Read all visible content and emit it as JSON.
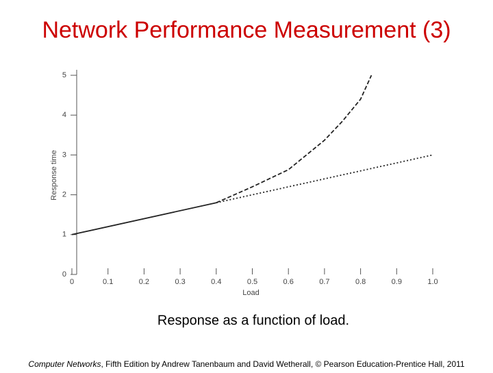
{
  "slide_title": "Network Performance Measurement (3)",
  "caption": "Response as a function of load.",
  "footer": {
    "book": "Computer Networks",
    "rest": ", Fifth Edition by Andrew Tanenbaum and David Wetherall, © Pearson Education-Prentice Hall, 2011"
  },
  "chart_data": {
    "type": "line",
    "xlabel": "Load",
    "ylabel": "Response time",
    "xlim": [
      0,
      1
    ],
    "ylim": [
      0,
      5
    ],
    "xticks": [
      0,
      0.1,
      0.2,
      0.3,
      0.4,
      0.5,
      0.6,
      0.7,
      0.8,
      0.9,
      {
        "value": 1,
        "label": "1.0"
      }
    ],
    "yticks": [
      0,
      1,
      2,
      3,
      4,
      5
    ],
    "series": [
      {
        "color": "#222222",
        "dash": "solid",
        "x": [
          0,
          0.4
        ],
        "values": [
          1.0,
          1.8
        ]
      },
      {
        "color": "#222222",
        "dash": "dotted",
        "x": [
          0.4,
          1.0
        ],
        "values": [
          1.8,
          3.0
        ]
      },
      {
        "color": "#222222",
        "dash": "dashed",
        "x": [
          0.4,
          0.5,
          0.6,
          0.7,
          0.75,
          0.8,
          0.83
        ],
        "values": [
          1.8,
          2.2,
          2.63,
          3.37,
          3.85,
          4.4,
          5.0
        ]
      }
    ]
  }
}
